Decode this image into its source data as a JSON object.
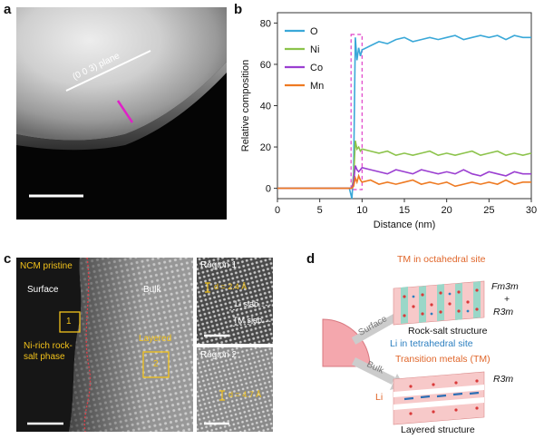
{
  "panels": {
    "a": "a",
    "b": "b",
    "c": "c",
    "d": "d"
  },
  "panel_a": {
    "plane_label": "(0 0 3) plane"
  },
  "chart_data": {
    "type": "line",
    "xlabel": "Distance (nm)",
    "ylabel": "Relative composition",
    "xlim": [
      0,
      30
    ],
    "ylim": [
      -5,
      85
    ],
    "xticks": [
      0,
      5,
      10,
      15,
      20,
      25,
      30
    ],
    "yticks": [
      0,
      20,
      40,
      60,
      80
    ],
    "legend_position": "top-left",
    "highlight_region": [
      8.7,
      10.0
    ],
    "x": [
      0,
      8.5,
      8.8,
      9.0,
      9.2,
      9.4,
      9.6,
      9.8,
      10,
      11,
      12,
      13,
      14,
      15,
      16,
      17,
      18,
      19,
      20,
      21,
      22,
      23,
      24,
      25,
      26,
      27,
      28,
      29,
      30
    ],
    "series": [
      {
        "name": "O",
        "color": "#3aa8d8",
        "values": [
          0,
          0,
          -5,
          8,
          73,
          62,
          68,
          64,
          67,
          69,
          71,
          70,
          72,
          73,
          71,
          72,
          73,
          72,
          73,
          74,
          72,
          73,
          74,
          73,
          74,
          72,
          74,
          73,
          73
        ]
      },
      {
        "name": "Ni",
        "color": "#8cc34b",
        "values": [
          0,
          0,
          0,
          5,
          23,
          19,
          20,
          18,
          19,
          18,
          17,
          18,
          16,
          17,
          16,
          17,
          18,
          16,
          17,
          16,
          17,
          18,
          16,
          17,
          18,
          16,
          17,
          16,
          17
        ]
      },
      {
        "name": "Co",
        "color": "#9b3fd1",
        "values": [
          0,
          0,
          0,
          3,
          11,
          9,
          8,
          9,
          10,
          9,
          8,
          7,
          9,
          8,
          7,
          9,
          8,
          7,
          8,
          7,
          9,
          7,
          6,
          8,
          7,
          6,
          8,
          7,
          7
        ]
      },
      {
        "name": "Mn",
        "color": "#ee7a22",
        "values": [
          0,
          0,
          0,
          1,
          5,
          3,
          6,
          4,
          3,
          4,
          2,
          3,
          2,
          3,
          4,
          2,
          3,
          2,
          3,
          1,
          2,
          3,
          2,
          3,
          2,
          4,
          2,
          3,
          3
        ]
      }
    ]
  },
  "panel_c": {
    "title": "NCM pristine",
    "surface": "Surface",
    "bulk": "Bulk",
    "box1": "1",
    "box2": "2",
    "ni_rich": "Ni-rich rock-salt phase",
    "layered": "Layered",
    "region1": {
      "title": "Region 1",
      "d": "d = 2.4 Å",
      "li": "Li slab",
      "tm": "TM slab"
    },
    "region2": {
      "title": "Region 2",
      "d": "d = 4.7 Å"
    }
  },
  "panel_d": {
    "tm_oct": "TM in octahedral site",
    "fm3m": "Fm3m",
    "plus": "+",
    "r3m_top": "R3m",
    "rocksalt": "Rock-salt structure",
    "li_tet": "Li in tetrahedral site",
    "surface_arrow": "Surface",
    "bulk_arrow": "Bulk",
    "tm_label": "Transition metals (TM)",
    "r3m_bottom": "R3m",
    "li": "Li",
    "layered": "Layered structure"
  }
}
